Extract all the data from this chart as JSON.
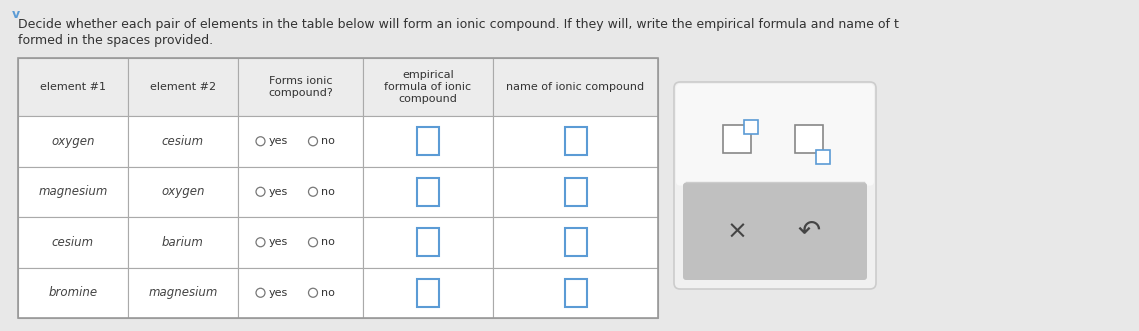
{
  "title_line1": "Decide whether each pair of elements in the table below will form an ionic compound. If they will, write the empirical formula and name of t",
  "title_line2": "formed in the spaces provided.",
  "headers": [
    "element #1",
    "element #2",
    "Forms ionic\ncompound?",
    "empirical\nformula of ionic\ncompound",
    "name of ionic compound"
  ],
  "rows": [
    [
      "oxygen",
      "cesium"
    ],
    [
      "magnesium",
      "oxygen"
    ],
    [
      "cesium",
      "barium"
    ],
    [
      "bromine",
      "magnesium"
    ]
  ],
  "bg_color": "#e8e8e8",
  "table_bg": "#ffffff",
  "header_bg": "#ececec",
  "cell_bg": "#ffffff",
  "input_box_color": "#5b9bd5",
  "panel_outer_bg": "#ffffff",
  "panel_inner_bg": "#c8c8c8",
  "panel_top_bg": "#f5f5f5",
  "icon_color": "#5b9bd5",
  "x_color": "#333333",
  "undo_color": "#333333"
}
